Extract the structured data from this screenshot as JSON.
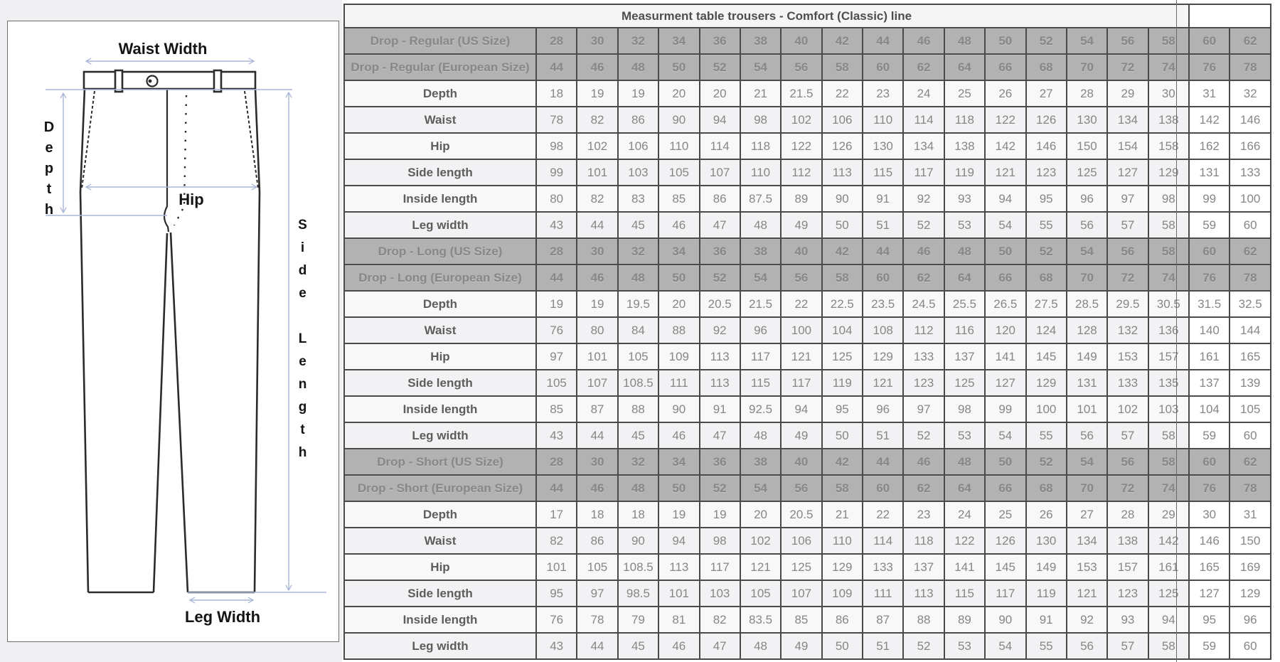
{
  "colors": {
    "page_left_bg": "#f0f0f2",
    "header_bg": "#b2b2b2",
    "grid": "#4a4a4a",
    "title_bg": "#f5f5f5",
    "row_bg": "#f8f8f9",
    "arrow": "#a8b5d8",
    "outline": "#2b2b2b"
  },
  "diagram": {
    "waist_width_label": "Waist Width",
    "depth_label": "Depth",
    "hip_label": "Hip",
    "side_length_label": "Side Length",
    "leg_width_label": "Leg Width"
  },
  "table": {
    "title": "Measurment table trousers - Comfort (Classic) line",
    "sections": [
      {
        "us_label": "Drop - Regular (US Size)",
        "us_sizes": [
          28,
          30,
          32,
          34,
          36,
          38,
          40,
          42,
          44,
          46,
          48,
          50,
          52,
          54,
          56,
          58,
          60,
          62
        ],
        "eu_label": "Drop - Regular (European Size)",
        "eu_sizes": [
          44,
          46,
          48,
          50,
          52,
          54,
          56,
          58,
          60,
          62,
          64,
          66,
          68,
          70,
          72,
          74,
          76,
          78
        ],
        "rows": [
          {
            "label": "Depth",
            "values": [
              18,
              19,
              19,
              20,
              20,
              21,
              21.5,
              22,
              23,
              24,
              25,
              26,
              27,
              28,
              29,
              30,
              31,
              32
            ]
          },
          {
            "label": "Waist",
            "values": [
              78,
              82,
              86,
              90,
              94,
              98,
              102,
              106,
              110,
              114,
              118,
              122,
              126,
              130,
              134,
              138,
              142,
              146
            ]
          },
          {
            "label": "Hip",
            "values": [
              98,
              102,
              106,
              110,
              114,
              118,
              122,
              126,
              130,
              134,
              138,
              142,
              146,
              150,
              154,
              158,
              162,
              166
            ]
          },
          {
            "label": "Side length",
            "values": [
              99,
              101,
              103,
              105,
              107,
              110,
              112,
              113,
              115,
              117,
              119,
              121,
              123,
              125,
              127,
              129,
              131,
              133
            ]
          },
          {
            "label": "Inside length",
            "values": [
              80,
              82,
              83,
              85,
              86,
              87.5,
              89,
              90,
              91,
              92,
              93,
              94,
              95,
              96,
              97,
              98,
              99,
              100
            ]
          },
          {
            "label": "Leg width",
            "values": [
              43,
              44,
              45,
              46,
              47,
              48,
              49,
              50,
              51,
              52,
              53,
              54,
              55,
              56,
              57,
              58,
              59,
              60
            ]
          }
        ]
      },
      {
        "us_label": "Drop - Long (US Size)",
        "us_sizes": [
          28,
          30,
          32,
          34,
          36,
          38,
          40,
          42,
          44,
          46,
          48,
          50,
          52,
          54,
          56,
          58,
          60,
          62
        ],
        "eu_label": "Drop - Long (European Size)",
        "eu_sizes": [
          44,
          46,
          48,
          50,
          52,
          54,
          56,
          58,
          60,
          62,
          64,
          66,
          68,
          70,
          72,
          74,
          76,
          78
        ],
        "rows": [
          {
            "label": "Depth",
            "values": [
              19,
              19,
              19.5,
              20,
              20.5,
              21.5,
              22,
              22.5,
              23.5,
              24.5,
              25.5,
              26.5,
              27.5,
              28.5,
              29.5,
              30.5,
              31.5,
              32.5
            ]
          },
          {
            "label": "Waist",
            "values": [
              76,
              80,
              84,
              88,
              92,
              96,
              100,
              104,
              108,
              112,
              116,
              120,
              124,
              128,
              132,
              136,
              140,
              144
            ]
          },
          {
            "label": "Hip",
            "values": [
              97,
              101,
              105,
              109,
              113,
              117,
              121,
              125,
              129,
              133,
              137,
              141,
              145,
              149,
              153,
              157,
              161,
              165
            ]
          },
          {
            "label": "Side length",
            "values": [
              105,
              107,
              108.5,
              111,
              113,
              115,
              117,
              119,
              121,
              123,
              125,
              127,
              129,
              131,
              133,
              135,
              137,
              139
            ]
          },
          {
            "label": "Inside length",
            "values": [
              85,
              87,
              88,
              90,
              91,
              92.5,
              94,
              95,
              96,
              97,
              98,
              99,
              100,
              101,
              102,
              103,
              104,
              105
            ]
          },
          {
            "label": "Leg width",
            "values": [
              43,
              44,
              45,
              46,
              47,
              48,
              49,
              50,
              51,
              52,
              53,
              54,
              55,
              56,
              57,
              58,
              59,
              60
            ]
          }
        ]
      },
      {
        "us_label": "Drop - Short (US Size)",
        "us_sizes": [
          28,
          30,
          32,
          34,
          36,
          38,
          40,
          42,
          44,
          46,
          48,
          50,
          52,
          54,
          56,
          58,
          60,
          62
        ],
        "eu_label": "Drop - Short (European Size)",
        "eu_sizes": [
          44,
          46,
          48,
          50,
          52,
          54,
          56,
          58,
          60,
          62,
          64,
          66,
          68,
          70,
          72,
          74,
          76,
          78
        ],
        "rows": [
          {
            "label": "Depth",
            "values": [
              17,
              18,
              18,
              19,
              19,
              20,
              20.5,
              21,
              22,
              23,
              24,
              25,
              26,
              27,
              28,
              29,
              30,
              31
            ]
          },
          {
            "label": "Waist",
            "values": [
              82,
              86,
              90,
              94,
              98,
              102,
              106,
              110,
              114,
              118,
              122,
              126,
              130,
              134,
              138,
              142,
              146,
              150
            ]
          },
          {
            "label": "Hip",
            "values": [
              101,
              105,
              108.5,
              113,
              117,
              121,
              125,
              129,
              133,
              137,
              141,
              145,
              149,
              153,
              157,
              161,
              165,
              169
            ]
          },
          {
            "label": "Side length",
            "values": [
              95,
              97,
              98.5,
              101,
              103,
              105,
              107,
              109,
              111,
              113,
              115,
              117,
              119,
              121,
              123,
              125,
              127,
              129
            ]
          },
          {
            "label": "Inside length",
            "values": [
              76,
              78,
              79,
              81,
              82,
              83.5,
              85,
              86,
              87,
              88,
              89,
              90,
              91,
              92,
              93,
              94,
              95,
              96
            ]
          },
          {
            "label": "Leg width",
            "values": [
              43,
              44,
              45,
              46,
              47,
              48,
              49,
              50,
              51,
              52,
              53,
              54,
              55,
              56,
              57,
              58,
              59,
              60
            ]
          }
        ]
      }
    ]
  }
}
